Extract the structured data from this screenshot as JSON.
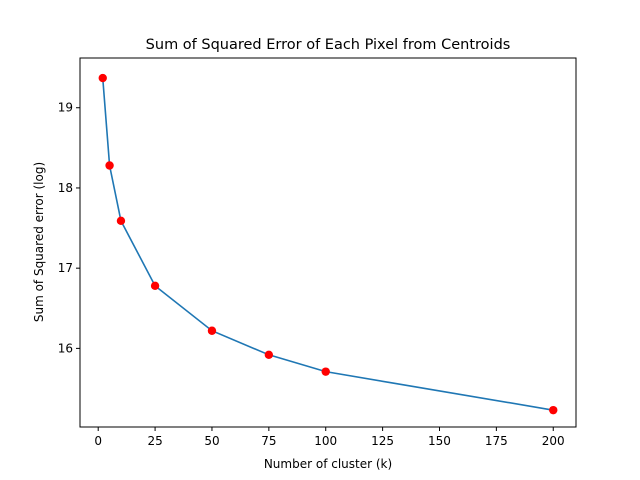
{
  "chart_data": {
    "type": "line",
    "title": "Sum of Squared Error of Each Pixel from Centroids",
    "xlabel": "Number of cluster (k)",
    "ylabel": "Sum of Squared error (log)",
    "xlim": [
      -8,
      210
    ],
    "ylim": [
      15.02,
      19.62
    ],
    "xticks": [
      0,
      25,
      50,
      75,
      100,
      125,
      150,
      175,
      200
    ],
    "yticks": [
      16,
      17,
      18,
      19
    ],
    "grid": false,
    "legend": "none",
    "series": [
      {
        "x": [
          2,
          5,
          10,
          25,
          50,
          75,
          100,
          200
        ],
        "y": [
          19.37,
          18.28,
          17.59,
          16.78,
          16.22,
          15.92,
          15.71,
          15.23
        ],
        "line_color": "#1f77b4",
        "marker_color": "#ff0000"
      }
    ]
  }
}
